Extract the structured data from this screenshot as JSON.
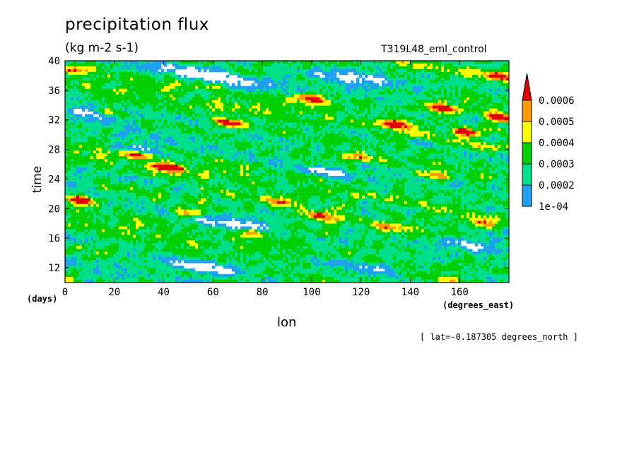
{
  "title": "precipitation flux",
  "units": "(kg m-2 s-1)",
  "run_label": "T319L48_eml_control",
  "slice_label": "[ lat=-0.187305 degrees_north ]",
  "colors": [
    "#ffffff",
    "#1fa0f0",
    "#00e08a",
    "#00d000",
    "#ffff00",
    "#ff9900",
    "#e00000"
  ],
  "chart_data": {
    "type": "heatmap",
    "title": "precipitation flux",
    "subtitle": "(kg m-2 s-1)",
    "xlabel": "lon",
    "xunits": "(degrees_east)",
    "ylabel": "time",
    "yunits": "(days)",
    "xlim": [
      0,
      180
    ],
    "ylim": [
      10,
      40
    ],
    "x_ticks": [
      "0",
      "20",
      "40",
      "60",
      "80",
      "100",
      "120",
      "140",
      "160"
    ],
    "y_ticks": [
      "12",
      "16",
      "20",
      "24",
      "28",
      "32",
      "36",
      "40"
    ],
    "colorbar": {
      "labels": [
        "1e-04",
        "0.0002",
        "0.0003",
        "0.0004",
        "0.0005",
        "0.0006"
      ],
      "levels": [
        0.0001,
        0.0002,
        0.0003,
        0.0004,
        0.0005,
        0.0006
      ],
      "colors": [
        "#1fa0f0",
        "#00e08a",
        "#00d000",
        "#ffff00",
        "#ff9900",
        "#e00000"
      ]
    },
    "bands": [
      {
        "lon0": 0,
        "t0": 21.3,
        "slope": 0.07
      },
      {
        "lon0": 0,
        "t0": 14.6,
        "slope": 0.07
      },
      {
        "lon0": 0,
        "t0": 28.6,
        "slope": 0.07
      },
      {
        "lon0": 0,
        "t0": 38.6,
        "slope": 0.06
      },
      {
        "lon0": 60,
        "t0": 32.0,
        "slope": 0.07
      },
      {
        "lon0": 90,
        "t0": 34.6,
        "slope": 0.05
      },
      {
        "lon0": 20,
        "t0": 26.0,
        "slope": 0.07
      },
      {
        "lon0": 90,
        "t0": 19.0,
        "slope": 0.06
      },
      {
        "lon0": 120,
        "t0": 31.0,
        "slope": 0.05
      }
    ],
    "peaks": [
      {
        "lon": 6,
        "time": 21.2,
        "amp": 1.0
      },
      {
        "lon": 42,
        "time": 25.6,
        "amp": 1.0
      },
      {
        "lon": 100,
        "time": 34.8,
        "amp": 1.0
      },
      {
        "lon": 153,
        "time": 33.6,
        "amp": 1.0
      },
      {
        "lon": 163,
        "time": 30.3,
        "amp": 1.0
      },
      {
        "lon": 176,
        "time": 32.3,
        "amp": 0.9
      },
      {
        "lon": 176,
        "time": 38.0,
        "amp": 0.8
      },
      {
        "lon": 66,
        "time": 31.6,
        "amp": 0.8
      },
      {
        "lon": 135,
        "time": 31.4,
        "amp": 0.9
      },
      {
        "lon": 104,
        "time": 19.0,
        "amp": 0.8
      },
      {
        "lon": 30,
        "time": 27.3,
        "amp": 0.8
      },
      {
        "lon": 76,
        "time": 16.8,
        "amp": 0.7
      },
      {
        "lon": 130,
        "time": 17.6,
        "amp": 0.7
      },
      {
        "lon": 150,
        "time": 24.5,
        "amp": 0.7
      },
      {
        "lon": 18,
        "time": 33.0,
        "amp": 0.6
      },
      {
        "lon": 3,
        "time": 38.8,
        "amp": 0.6
      },
      {
        "lon": 120,
        "time": 27.0,
        "amp": 0.6
      },
      {
        "lon": 50,
        "time": 19.5,
        "amp": 0.6
      },
      {
        "lon": 170,
        "time": 18.0,
        "amp": 0.6
      },
      {
        "lon": 85,
        "time": 21.0,
        "amp": 0.6
      }
    ],
    "dry_zones": [
      {
        "lon": 10,
        "time": 33.0,
        "width": 30,
        "height": 1.6
      },
      {
        "lon": 30,
        "time": 28.0,
        "width": 30,
        "height": 1.3
      },
      {
        "lon": 68,
        "time": 17.8,
        "width": 30,
        "height": 1.6
      },
      {
        "lon": 55,
        "time": 12.0,
        "width": 35,
        "height": 1.5
      },
      {
        "lon": 120,
        "time": 12.2,
        "width": 40,
        "height": 1.5
      },
      {
        "lon": 120,
        "time": 37.5,
        "width": 40,
        "height": 2.0
      },
      {
        "lon": 60,
        "time": 38.0,
        "width": 50,
        "height": 1.6
      },
      {
        "lon": 165,
        "time": 15.0,
        "width": 25,
        "height": 1.5
      },
      {
        "lon": 105,
        "time": 25.0,
        "width": 25,
        "height": 1.2
      }
    ]
  }
}
